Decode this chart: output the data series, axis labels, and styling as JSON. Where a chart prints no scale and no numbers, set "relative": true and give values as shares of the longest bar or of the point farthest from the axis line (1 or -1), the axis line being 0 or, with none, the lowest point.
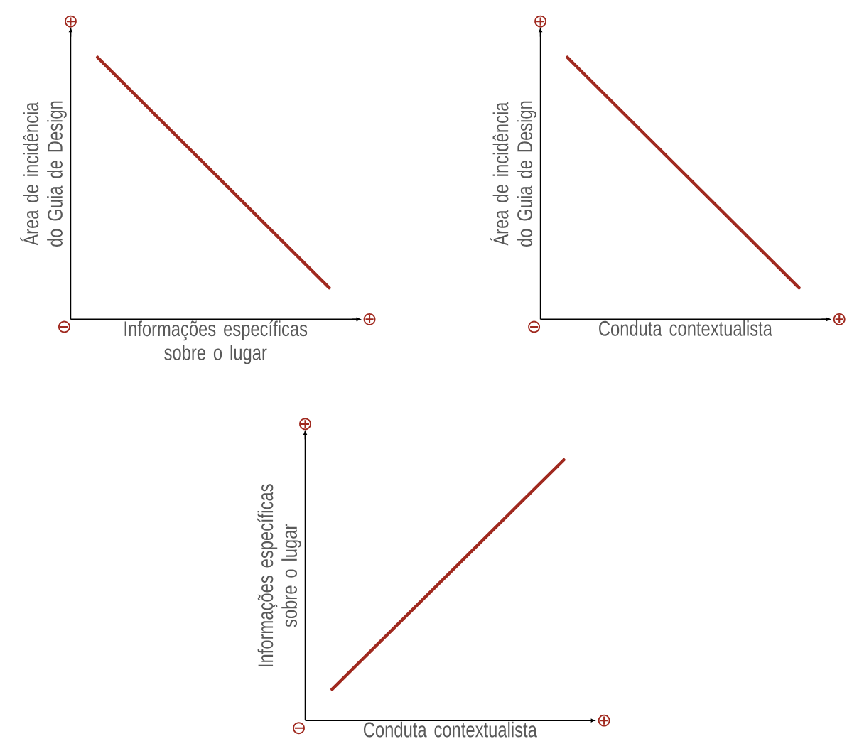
{
  "chart_data": [
    {
      "type": "line",
      "relative": true,
      "categories": [
        null,
        null
      ],
      "values": [
        1,
        0.12
      ],
      "color": "#a0291f",
      "xlabel": "Informações específicas sobre o lugar",
      "ylabel": "Área de incidência do Guia de Design",
      "annotations": [
        "⊖",
        "⊕",
        "⊕"
      ]
    },
    {
      "type": "line",
      "relative": true,
      "categories": [
        null,
        null
      ],
      "values": [
        1,
        0.12
      ],
      "color": "#a0291f",
      "xlabel": "Conduta contextualista",
      "ylabel": "Área de incidência do Guia de Design",
      "annotations": [
        "⊖",
        "⊕",
        "⊕"
      ]
    },
    {
      "type": "line",
      "relative": true,
      "categories": [
        null,
        null
      ],
      "values": [
        0.12,
        1
      ],
      "color": "#a0291f",
      "xlabel": "Conduta contextualista",
      "ylabel": "Informações específicas sobre o lugar",
      "annotations": [
        "⊖",
        "⊕",
        "⊕"
      ]
    }
  ]
}
